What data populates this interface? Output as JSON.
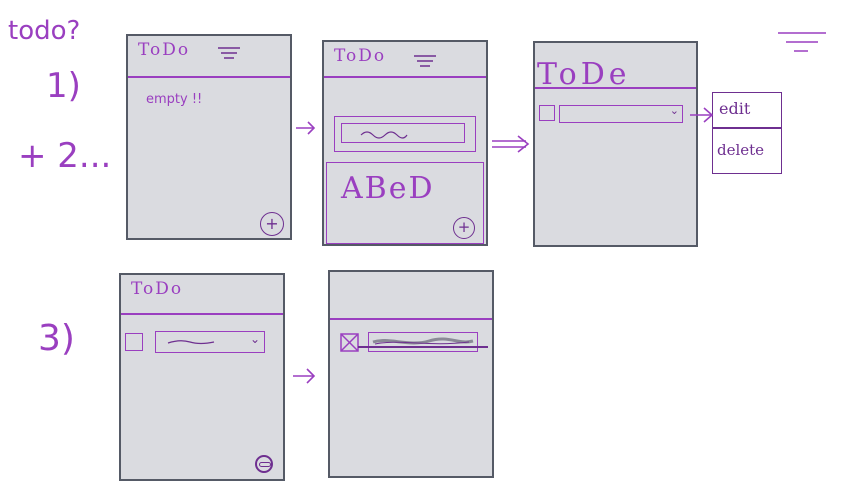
{
  "labels": {
    "todo_question": "todo?",
    "step1": "1)",
    "step2": "+ 2...",
    "step3": "3)"
  },
  "screens": {
    "s1": {
      "title": "ToDo",
      "body_text": "empty !!",
      "fab": "+"
    },
    "s2": {
      "title": "ToDo",
      "sheet_text": "ABeD",
      "fab": "+"
    },
    "s3": {
      "title": "ToDe"
    },
    "s4": {
      "title": "ToDo"
    },
    "s5": {}
  },
  "menu": {
    "edit": "edit",
    "delete": "delete"
  },
  "colors": {
    "ink": "#9a3fc0",
    "frame": "#555a66",
    "screen_bg": "#dadbe0"
  },
  "icons": [
    "hamburger-icon",
    "plus-icon",
    "checkbox-icon",
    "chevron-down-icon",
    "arrow-right-icon",
    "filter-icon"
  ]
}
